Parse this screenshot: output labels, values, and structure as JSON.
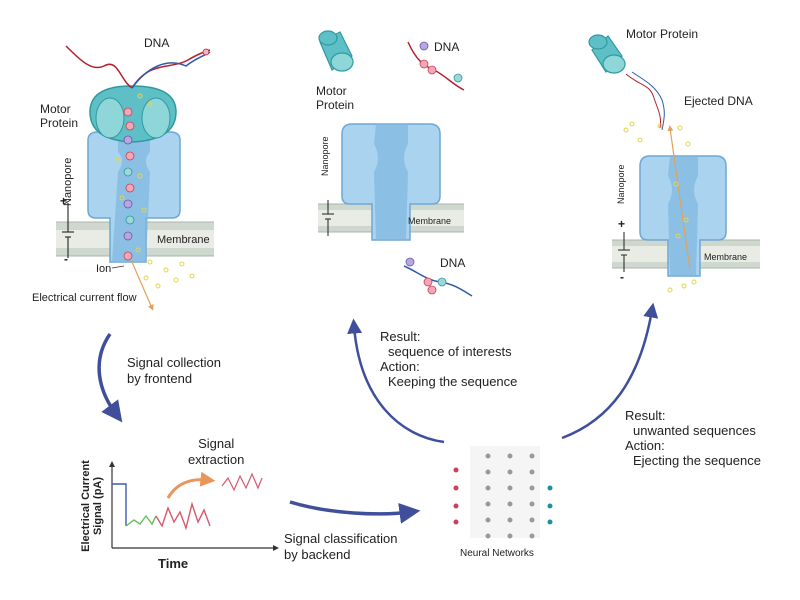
{
  "panel_left": {
    "dna": "DNA",
    "motor_protein": [
      "Motor",
      "Protein"
    ],
    "nanopore": "Nanopore",
    "membrane": "Membrane",
    "ion": "Ion",
    "plus": "+",
    "minus": "-",
    "current_flow": "Electrical current flow"
  },
  "panel_middle": {
    "motor_protein": [
      "Motor",
      "Protein"
    ],
    "dna_top": "DNA",
    "nanopore": "Nanopore",
    "membrane": "Membrane",
    "dna_bottom": "DNA"
  },
  "panel_right": {
    "motor_protein": "Motor Protein",
    "ejected_dna": "Ejected DNA",
    "nanopore": "Nanopore",
    "membrane": "Membrane",
    "plus": "+",
    "minus": "-"
  },
  "steps": {
    "signal_collection": [
      "Signal collection",
      "by frontend"
    ],
    "signal_extraction": [
      "Signal",
      "extraction"
    ],
    "signal_classification": [
      "Signal classification",
      "by backend"
    ],
    "neural_networks": "Neural Networks"
  },
  "signal_plot": {
    "ylabel": [
      "Electrical Current",
      "Signal (pA)"
    ],
    "xlabel": "Time"
  },
  "results": {
    "keep": {
      "result_label": "Result:",
      "result_value": "sequence of interests",
      "action_label": "Action:",
      "action_value": "Keeping the sequence"
    },
    "eject": {
      "result_label": "Result:",
      "result_value": "unwanted sequences",
      "action_label": "Action:",
      "action_value": "Ejecting the sequence"
    }
  },
  "colors": {
    "pore": "#a9d3ef",
    "pore_dark": "#6fa7d4",
    "motor": "#5ec0c6",
    "motor_dark": "#2e9aa0",
    "membrane": "#cfd8cf",
    "dna_red": "#b5202f",
    "dna_blue": "#2f5aa8",
    "arrow": "#3f4f9b",
    "signal_green": "#6bbd5b",
    "signal_red": "#d9586b",
    "signal_blue": "#3a5fb0",
    "node_red": "#c8415a",
    "node_grey": "#9a9a9a",
    "node_teal": "#1f8fa0",
    "ion": "#e5d54a"
  }
}
